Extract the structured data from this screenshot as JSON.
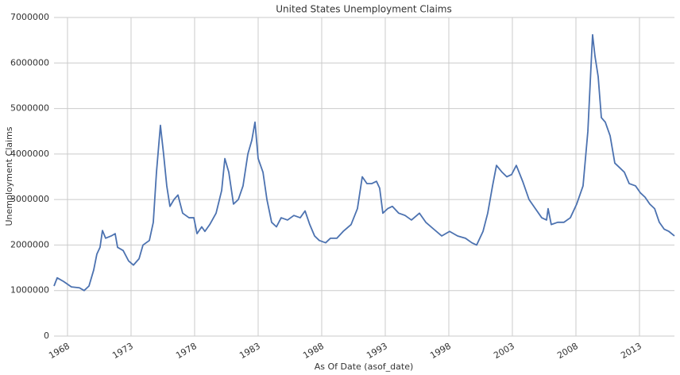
{
  "chart_data": {
    "type": "line",
    "title": "United States Unemployment Claims",
    "x_label": "As Of Date (asof_date)",
    "y_label": "Unemployment Claims",
    "color": "#4c72b0",
    "grid": true,
    "xlim": [
      1966.94,
      2015.75
    ],
    "xticks": [
      1968,
      1973,
      1978,
      1983,
      1988,
      1993,
      1998,
      2003,
      2008,
      2013
    ],
    "ylim": [
      0,
      7000000
    ],
    "yticks": [
      0,
      1000000,
      2000000,
      3000000,
      4000000,
      5000000,
      6000000,
      7000000
    ],
    "x": [
      1966.94,
      1967.19,
      1967.69,
      1968.31,
      1968.94,
      1969.31,
      1969.69,
      1970.06,
      1970.31,
      1970.56,
      1970.75,
      1971.0,
      1971.44,
      1971.75,
      1971.94,
      1972.38,
      1972.81,
      1973.19,
      1973.63,
      1973.94,
      1974.44,
      1974.75,
      1975.0,
      1975.31,
      1975.56,
      1975.81,
      1976.06,
      1976.38,
      1976.69,
      1977.06,
      1977.56,
      1977.94,
      1978.19,
      1978.56,
      1978.81,
      1979.19,
      1979.69,
      1980.13,
      1980.38,
      1980.69,
      1981.06,
      1981.44,
      1981.81,
      1982.19,
      1982.5,
      1982.75,
      1983.0,
      1983.38,
      1983.69,
      1984.06,
      1984.44,
      1984.81,
      1985.31,
      1985.81,
      1986.31,
      1986.69,
      1987.06,
      1987.44,
      1987.81,
      1988.31,
      1988.69,
      1989.19,
      1989.69,
      1990.31,
      1990.81,
      1991.19,
      1991.56,
      1991.94,
      1992.31,
      1992.56,
      1992.81,
      1993.19,
      1993.56,
      1994.06,
      1994.56,
      1995.06,
      1995.69,
      1996.19,
      1996.81,
      1997.44,
      1998.06,
      1998.69,
      1999.31,
      1999.81,
      2000.19,
      2000.69,
      2001.06,
      2001.44,
      2001.75,
      2002.19,
      2002.56,
      2002.94,
      2003.31,
      2003.81,
      2004.31,
      2004.81,
      2005.31,
      2005.69,
      2005.81,
      2006.06,
      2006.56,
      2007.06,
      2007.56,
      2008.06,
      2008.56,
      2008.94,
      2009.13,
      2009.31,
      2009.5,
      2009.75,
      2010.0,
      2010.31,
      2010.69,
      2011.06,
      2011.44,
      2011.81,
      2012.19,
      2012.69,
      2013.06,
      2013.44,
      2013.81,
      2014.19,
      2014.56,
      2014.94,
      2015.31,
      2015.75
    ],
    "values": [
      1100000,
      1280000,
      1200000,
      1080000,
      1060000,
      1000000,
      1100000,
      1450000,
      1800000,
      1950000,
      2320000,
      2150000,
      2200000,
      2250000,
      1950000,
      1880000,
      1650000,
      1560000,
      1700000,
      2000000,
      2100000,
      2500000,
      3600000,
      4630000,
      4000000,
      3300000,
      2850000,
      3000000,
      3100000,
      2700000,
      2600000,
      2600000,
      2250000,
      2400000,
      2300000,
      2450000,
      2700000,
      3200000,
      3900000,
      3600000,
      2900000,
      3000000,
      3300000,
      4000000,
      4300000,
      4700000,
      3900000,
      3600000,
      3000000,
      2500000,
      2400000,
      2600000,
      2550000,
      2650000,
      2600000,
      2750000,
      2450000,
      2200000,
      2100000,
      2050000,
      2150000,
      2150000,
      2300000,
      2450000,
      2800000,
      3500000,
      3350000,
      3350000,
      3400000,
      3250000,
      2700000,
      2800000,
      2850000,
      2700000,
      2650000,
      2550000,
      2700000,
      2500000,
      2350000,
      2200000,
      2300000,
      2200000,
      2150000,
      2050000,
      2000000,
      2300000,
      2700000,
      3300000,
      3750000,
      3600000,
      3500000,
      3550000,
      3750000,
      3400000,
      3000000,
      2800000,
      2600000,
      2550000,
      2800000,
      2450000,
      2500000,
      2500000,
      2600000,
      2900000,
      3300000,
      4500000,
      5600000,
      6620000,
      6150000,
      5700000,
      4800000,
      4700000,
      4400000,
      3800000,
      3700000,
      3600000,
      3350000,
      3300000,
      3150000,
      3050000,
      2900000,
      2800000,
      2500000,
      2350000,
      2300000,
      2200000
    ]
  }
}
